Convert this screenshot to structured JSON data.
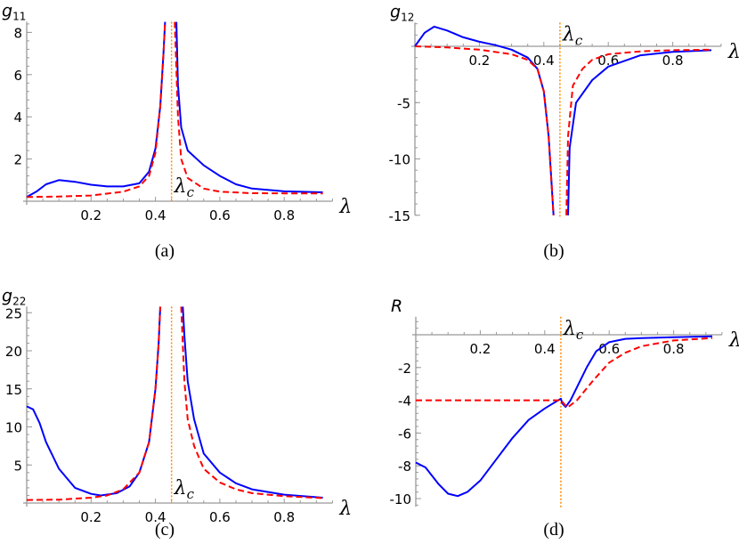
{
  "colors": {
    "exact": "#0000ff",
    "approx": "#ff0000",
    "critical": "#ff8c00",
    "axis": "#999999"
  },
  "chart_data": [
    {
      "type": "line",
      "panel_label": "(a)",
      "ylabel": "g",
      "ylabel_sub": "11",
      "xlabel": "λ",
      "critical_label": "λ",
      "critical_label_sub": "c",
      "critical_x": 0.45,
      "xlim": [
        0,
        0.95
      ],
      "ylim": [
        0,
        8.5
      ],
      "xticks": [
        0.2,
        0.4,
        0.6,
        0.8
      ],
      "xtick_labels": [
        "0.2",
        "0.4",
        "0.6",
        "0.8"
      ],
      "yticks": [
        2,
        4,
        6,
        8
      ],
      "ytick_labels": [
        "2",
        "4",
        "6",
        "8"
      ],
      "series": [
        {
          "style": "solid",
          "color": "#0000ff",
          "segments": [
            [
              [
                0,
                0.2
              ],
              [
                0.03,
                0.45
              ],
              [
                0.06,
                0.8
              ],
              [
                0.1,
                1.0
              ],
              [
                0.15,
                0.92
              ],
              [
                0.2,
                0.78
              ],
              [
                0.25,
                0.7
              ],
              [
                0.3,
                0.7
              ],
              [
                0.35,
                0.85
              ],
              [
                0.38,
                1.4
              ],
              [
                0.4,
                2.5
              ],
              [
                0.415,
                4.5
              ],
              [
                0.425,
                7
              ],
              [
                0.43,
                8.5
              ]
            ],
            [
              [
                0.465,
                8.5
              ],
              [
                0.47,
                5.5
              ],
              [
                0.48,
                3.5
              ],
              [
                0.5,
                2.4
              ],
              [
                0.55,
                1.7
              ],
              [
                0.6,
                1.2
              ],
              [
                0.65,
                0.8
              ],
              [
                0.7,
                0.6
              ],
              [
                0.8,
                0.47
              ],
              [
                0.92,
                0.42
              ]
            ]
          ]
        },
        {
          "style": "dashed",
          "color": "#ff0000",
          "segments": [
            [
              [
                0,
                0.2
              ],
              [
                0.1,
                0.22
              ],
              [
                0.2,
                0.27
              ],
              [
                0.3,
                0.45
              ],
              [
                0.35,
                0.7
              ],
              [
                0.38,
                1.2
              ],
              [
                0.4,
                2.3
              ],
              [
                0.415,
                4.5
              ],
              [
                0.425,
                7
              ],
              [
                0.43,
                8.5
              ]
            ],
            [
              [
                0.46,
                8.5
              ],
              [
                0.47,
                4
              ],
              [
                0.48,
                2
              ],
              [
                0.5,
                1.1
              ],
              [
                0.55,
                0.6
              ],
              [
                0.6,
                0.45
              ],
              [
                0.7,
                0.38
              ],
              [
                0.8,
                0.37
              ],
              [
                0.92,
                0.37
              ]
            ]
          ]
        }
      ]
    },
    {
      "type": "line",
      "panel_label": "(b)",
      "ylabel": "g",
      "ylabel_sub": "12",
      "xlabel": "λ",
      "critical_label": "λ",
      "critical_label_sub": "c",
      "critical_x": 0.45,
      "xlim": [
        0,
        0.95
      ],
      "ylim": [
        -15,
        2.1
      ],
      "xticks": [
        0.2,
        0.4,
        0.6,
        0.8
      ],
      "xtick_labels": [
        "0.2",
        "0.4",
        "0.6",
        "0.8"
      ],
      "yticks": [
        -5,
        -10,
        -15
      ],
      "ytick_labels": [
        "-5",
        "-10",
        "-15"
      ],
      "series": [
        {
          "style": "solid",
          "color": "#0000ff",
          "segments": [
            [
              [
                0,
                0
              ],
              [
                0.03,
                1.2
              ],
              [
                0.06,
                1.75
              ],
              [
                0.1,
                1.4
              ],
              [
                0.15,
                0.8
              ],
              [
                0.2,
                0.4
              ],
              [
                0.25,
                0.1
              ],
              [
                0.3,
                -0.3
              ],
              [
                0.35,
                -1
              ],
              [
                0.38,
                -2
              ],
              [
                0.4,
                -4
              ],
              [
                0.415,
                -8
              ],
              [
                0.43,
                -15
              ]
            ],
            [
              [
                0.475,
                -15
              ],
              [
                0.48,
                -9
              ],
              [
                0.5,
                -5
              ],
              [
                0.55,
                -3
              ],
              [
                0.6,
                -1.8
              ],
              [
                0.7,
                -0.8
              ],
              [
                0.8,
                -0.5
              ],
              [
                0.92,
                -0.35
              ]
            ]
          ]
        },
        {
          "style": "dashed",
          "color": "#ff0000",
          "segments": [
            [
              [
                0,
                0
              ],
              [
                0.1,
                -0.1
              ],
              [
                0.2,
                -0.3
              ],
              [
                0.3,
                -0.7
              ],
              [
                0.35,
                -1.2
              ],
              [
                0.38,
                -2
              ],
              [
                0.4,
                -4
              ],
              [
                0.415,
                -8
              ],
              [
                0.43,
                -15
              ]
            ],
            [
              [
                0.47,
                -15
              ],
              [
                0.475,
                -8
              ],
              [
                0.49,
                -3.5
              ],
              [
                0.52,
                -2
              ],
              [
                0.55,
                -1.2
              ],
              [
                0.6,
                -0.7
              ],
              [
                0.7,
                -0.45
              ],
              [
                0.8,
                -0.35
              ],
              [
                0.92,
                -0.3
              ]
            ]
          ]
        }
      ]
    },
    {
      "type": "line",
      "panel_label": "(c)",
      "ylabel": "g",
      "ylabel_sub": "22",
      "xlabel": "λ",
      "critical_label": "λ",
      "critical_label_sub": "c",
      "critical_x": 0.45,
      "xlim": [
        0,
        0.95
      ],
      "ylim": [
        0,
        25.8
      ],
      "xticks": [
        0.2,
        0.4,
        0.6,
        0.8
      ],
      "xtick_labels": [
        "0.2",
        "0.4",
        "0.6",
        "0.8"
      ],
      "yticks": [
        5,
        10,
        15,
        20,
        25
      ],
      "ytick_labels": [
        "5",
        "10",
        "15",
        "20",
        "25"
      ],
      "series": [
        {
          "style": "solid",
          "color": "#0000ff",
          "segments": [
            [
              [
                0,
                12.7
              ],
              [
                0.02,
                12.3
              ],
              [
                0.04,
                10.5
              ],
              [
                0.06,
                8
              ],
              [
                0.1,
                4.5
              ],
              [
                0.15,
                2
              ],
              [
                0.2,
                1.2
              ],
              [
                0.23,
                1.0
              ],
              [
                0.28,
                1.3
              ],
              [
                0.32,
                2.2
              ],
              [
                0.35,
                4
              ],
              [
                0.38,
                8
              ],
              [
                0.4,
                15
              ],
              [
                0.41,
                21
              ],
              [
                0.415,
                25.8
              ]
            ],
            [
              [
                0.485,
                25.8
              ],
              [
                0.49,
                22
              ],
              [
                0.5,
                16
              ],
              [
                0.52,
                11
              ],
              [
                0.55,
                6.5
              ],
              [
                0.6,
                4
              ],
              [
                0.65,
                2.6
              ],
              [
                0.7,
                1.8
              ],
              [
                0.8,
                1.1
              ],
              [
                0.92,
                0.7
              ]
            ]
          ]
        },
        {
          "style": "dashed",
          "color": "#ff0000",
          "segments": [
            [
              [
                0,
                0.4
              ],
              [
                0.1,
                0.45
              ],
              [
                0.2,
                0.7
              ],
              [
                0.25,
                1.0
              ],
              [
                0.3,
                1.8
              ],
              [
                0.35,
                4
              ],
              [
                0.38,
                8
              ],
              [
                0.4,
                15
              ],
              [
                0.41,
                21
              ],
              [
                0.415,
                25.8
              ]
            ],
            [
              [
                0.48,
                25.8
              ],
              [
                0.49,
                16
              ],
              [
                0.5,
                11
              ],
              [
                0.52,
                7.5
              ],
              [
                0.55,
                4.5
              ],
              [
                0.6,
                2.7
              ],
              [
                0.65,
                1.8
              ],
              [
                0.7,
                1.3
              ],
              [
                0.8,
                0.9
              ],
              [
                0.92,
                0.65
              ]
            ]
          ]
        }
      ]
    },
    {
      "type": "line",
      "panel_label": "(d)",
      "ylabel": "R",
      "ylabel_sub": "",
      "xlabel": "λ",
      "critical_label": "λ",
      "critical_label_sub": "c",
      "critical_x": 0.45,
      "xlim": [
        0,
        0.95
      ],
      "ylim": [
        -10.5,
        1.1
      ],
      "xticks": [
        0.2,
        0.4,
        0.6,
        0.8
      ],
      "xtick_labels": [
        "0.2",
        "0.4",
        "0.6",
        "0.8"
      ],
      "yticks": [
        -2,
        -4,
        -6,
        -8,
        -10
      ],
      "ytick_labels": [
        "-2",
        "-4",
        "-6",
        "-8",
        "-10"
      ],
      "series": [
        {
          "style": "solid",
          "color": "#0000ff",
          "segments": [
            [
              [
                0,
                -7.8
              ],
              [
                0.03,
                -8.1
              ],
              [
                0.07,
                -9.1
              ],
              [
                0.1,
                -9.7
              ],
              [
                0.13,
                -9.85
              ],
              [
                0.16,
                -9.6
              ],
              [
                0.2,
                -8.9
              ],
              [
                0.25,
                -7.6
              ],
              [
                0.3,
                -6.3
              ],
              [
                0.35,
                -5.2
              ],
              [
                0.4,
                -4.5
              ],
              [
                0.45,
                -3.9
              ],
              [
                0.455,
                -4.2
              ],
              [
                0.465,
                -4.4
              ],
              [
                0.48,
                -4.0
              ],
              [
                0.5,
                -3.2
              ],
              [
                0.53,
                -2.0
              ],
              [
                0.56,
                -1.0
              ],
              [
                0.6,
                -0.45
              ],
              [
                0.65,
                -0.25
              ],
              [
                0.7,
                -0.2
              ],
              [
                0.8,
                -0.15
              ],
              [
                0.92,
                -0.1
              ]
            ]
          ]
        },
        {
          "style": "dashed",
          "color": "#ff0000",
          "segments": [
            [
              [
                0,
                -4
              ],
              [
                0.45,
                -4
              ],
              [
                0.455,
                -4.1
              ],
              [
                0.47,
                -4.45
              ],
              [
                0.5,
                -4.0
              ],
              [
                0.55,
                -2.8
              ],
              [
                0.6,
                -1.7
              ],
              [
                0.65,
                -1.1
              ],
              [
                0.7,
                -0.7
              ],
              [
                0.8,
                -0.35
              ],
              [
                0.92,
                -0.2
              ]
            ]
          ]
        }
      ]
    }
  ]
}
